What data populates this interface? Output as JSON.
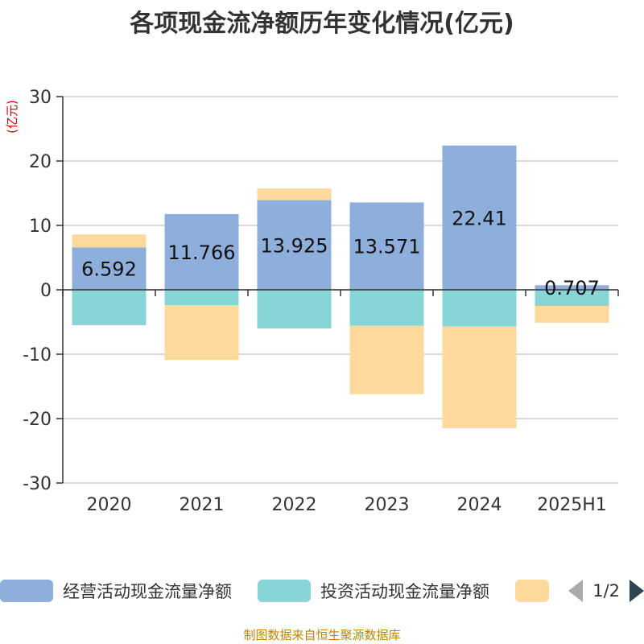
{
  "title": "各项现金流净额历年变化情况(亿元)",
  "footer": "制图数据来自恒生聚源数据库",
  "legend": {
    "pager": "1/2"
  },
  "chart_data": {
    "type": "bar",
    "stacked": true,
    "title": "各项现金流净额历年变化情况(亿元)",
    "ylabel": "(亿元)",
    "ylim": [
      -30,
      30
    ],
    "yticks": [
      30,
      20,
      10,
      0,
      -10,
      -20,
      -30
    ],
    "grid": true,
    "categories": [
      "2020",
      "2021",
      "2022",
      "2023",
      "2024",
      "2025H1"
    ],
    "series": [
      {
        "name": "经营活动现金流量净额",
        "color": "#8eaedb",
        "values": [
          6.592,
          11.766,
          13.925,
          13.571,
          22.41,
          0.707
        ],
        "labels": [
          "6.592",
          "11.766",
          "13.925",
          "13.571",
          "22.41",
          "0.707"
        ]
      },
      {
        "name": "投资活动现金流量净额",
        "color": "#88d5d8",
        "values": [
          -5.5,
          -2.4,
          -6.0,
          -5.6,
          -5.7,
          -2.5
        ]
      },
      {
        "name": "",
        "color": "#fdd99b",
        "values": [
          2.0,
          -8.5,
          1.8,
          -10.6,
          -15.8,
          -2.6
        ]
      }
    ],
    "legend_position": "bottom"
  }
}
